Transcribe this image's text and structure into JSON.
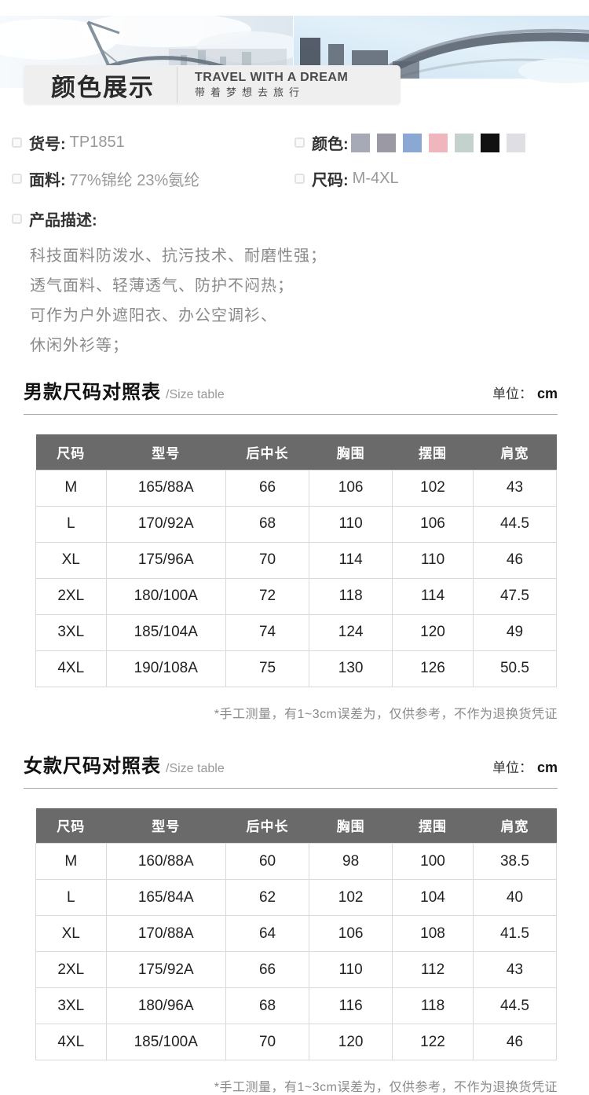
{
  "banner": {
    "title": "颜色展示",
    "slogan_en": "TRAVEL WITH A DREAM",
    "slogan_cn": "带着梦想去旅行"
  },
  "info": {
    "item_no_label": "货号:",
    "item_no_value": "TP1851",
    "color_label": "颜色:",
    "colors": [
      "#a6aab6",
      "#9b9aa4",
      "#8ba7d3",
      "#efb6be",
      "#c3d2cc",
      "#111111",
      "#dfdfe3"
    ],
    "fabric_label": "面料:",
    "fabric_value": "77%锦纶 23%氨纶",
    "size_label": "尺码:",
    "size_value": "M-4XL",
    "desc_label": "产品描述:",
    "desc_lines": [
      "科技面料防泼水、抗污技术、耐磨性强；",
      "透气面料、轻薄透气、防护不闷热；",
      "可作为户外遮阳衣、办公空调衫、",
      "休闲外衫等；"
    ]
  },
  "men_table": {
    "title": "男款尺码对照表",
    "subtitle": "/Size table",
    "unit_label": "单位：",
    "unit_value": "cm",
    "headers": [
      "尺码",
      "型号",
      "后中长",
      "胸围",
      "摆围",
      "肩宽"
    ],
    "rows": [
      [
        "M",
        "165/88A",
        "66",
        "106",
        "102",
        "43"
      ],
      [
        "L",
        "170/92A",
        "68",
        "110",
        "106",
        "44.5"
      ],
      [
        "XL",
        "175/96A",
        "70",
        "114",
        "110",
        "46"
      ],
      [
        "2XL",
        "180/100A",
        "72",
        "118",
        "114",
        "47.5"
      ],
      [
        "3XL",
        "185/104A",
        "74",
        "124",
        "120",
        "49"
      ],
      [
        "4XL",
        "190/108A",
        "75",
        "130",
        "126",
        "50.5"
      ]
    ],
    "note": "*手工测量，有1~3cm误差为，仅供参考，不作为退换货凭证"
  },
  "women_table": {
    "title": "女款尺码对照表",
    "subtitle": "/Size table",
    "unit_label": "单位：",
    "unit_value": "cm",
    "headers": [
      "尺码",
      "型号",
      "后中长",
      "胸围",
      "摆围",
      "肩宽"
    ],
    "rows": [
      [
        "M",
        "160/88A",
        "60",
        "98",
        "100",
        "38.5"
      ],
      [
        "L",
        "165/84A",
        "62",
        "102",
        "104",
        "40"
      ],
      [
        "XL",
        "170/88A",
        "64",
        "106",
        "108",
        "41.5"
      ],
      [
        "2XL",
        "175/92A",
        "66",
        "110",
        "112",
        "43"
      ],
      [
        "3XL",
        "180/96A",
        "68",
        "116",
        "118",
        "44.5"
      ],
      [
        "4XL",
        "185/100A",
        "70",
        "120",
        "122",
        "46"
      ]
    ],
    "note": "*手工测量，有1~3cm误差为，仅供参考，不作为退换货凭证"
  }
}
